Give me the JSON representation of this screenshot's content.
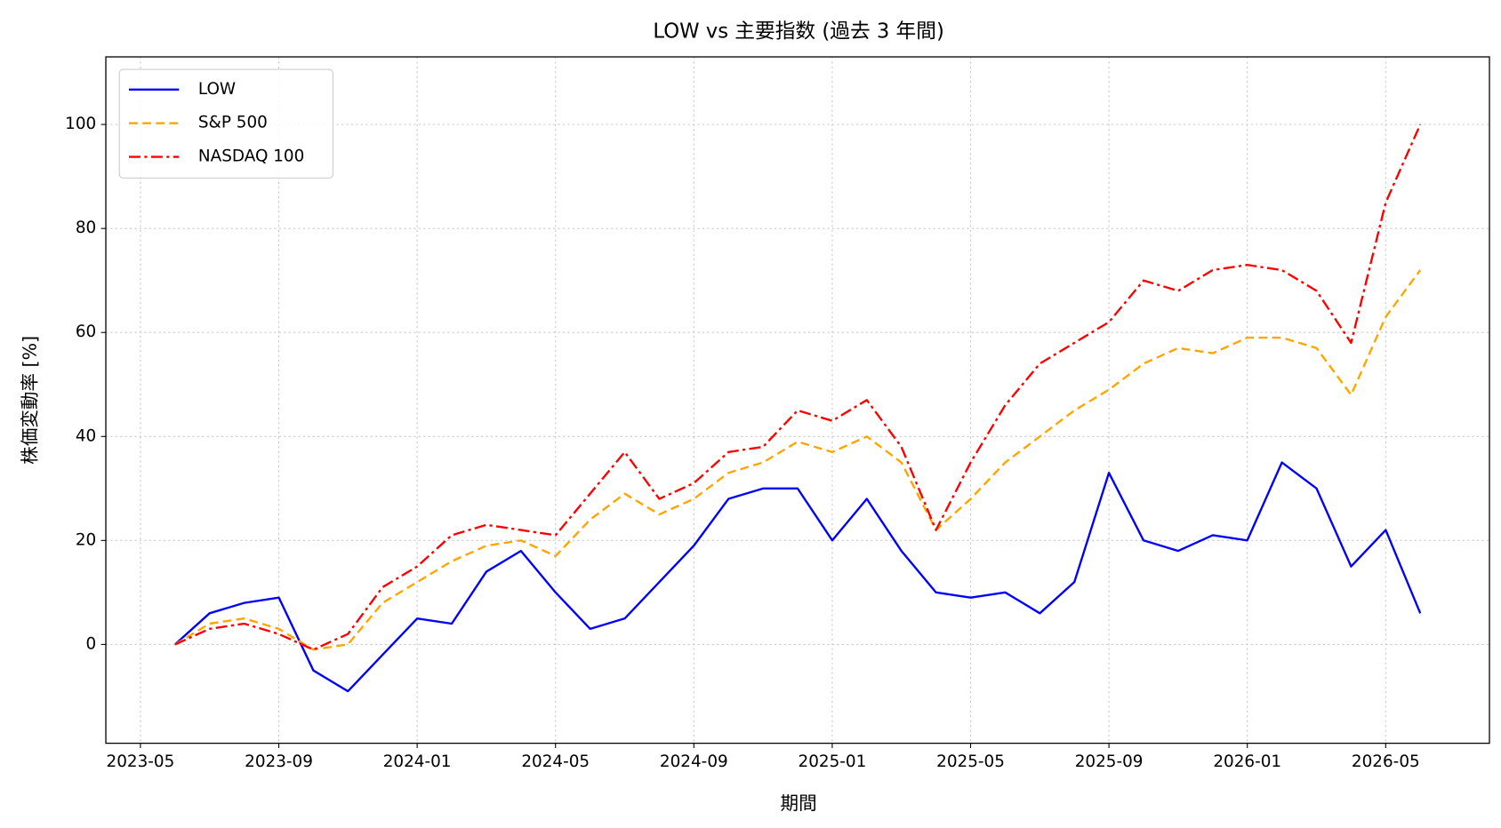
{
  "chart_data": {
    "type": "line",
    "title": "LOW vs 主要指数 (過去 3 年間)",
    "x_label": "期間",
    "y_label": "株価変動率 [%]",
    "x": [
      "2023-06",
      "2023-07",
      "2023-08",
      "2023-09",
      "2023-10",
      "2023-11",
      "2023-12",
      "2024-01",
      "2024-02",
      "2024-03",
      "2024-04",
      "2024-05",
      "2024-06",
      "2024-07",
      "2024-08",
      "2024-09",
      "2024-10",
      "2024-11",
      "2024-12",
      "2025-01",
      "2025-02",
      "2025-03",
      "2025-04",
      "2025-05",
      "2025-06",
      "2025-07",
      "2025-08",
      "2025-09",
      "2025-10",
      "2025-11",
      "2025-12",
      "2026-01",
      "2026-02",
      "2026-03",
      "2026-04",
      "2026-05",
      "2026-06"
    ],
    "series": [
      {
        "name": "LOW",
        "color": "#0000ff",
        "linestyle": "solid",
        "values": [
          0,
          6,
          8,
          9,
          -5,
          -9,
          -2,
          5,
          4,
          14,
          18,
          10,
          3,
          5,
          12,
          19,
          28,
          30,
          30,
          20,
          28,
          18,
          10,
          9,
          10,
          6,
          12,
          33,
          20,
          18,
          21,
          20,
          35,
          30,
          15,
          22,
          6
        ]
      },
      {
        "name": "S&P 500",
        "color": "#ffa500",
        "linestyle": "dashed",
        "values": [
          0,
          4,
          5,
          3,
          -1,
          0,
          8,
          12,
          16,
          19,
          20,
          17,
          24,
          29,
          25,
          28,
          33,
          35,
          39,
          37,
          40,
          35,
          22,
          28,
          35,
          40,
          45,
          49,
          54,
          57,
          56,
          59,
          59,
          57,
          48,
          63,
          72
        ]
      },
      {
        "name": "NASDAQ 100",
        "color": "#ff0000",
        "linestyle": "dashdot",
        "values": [
          0,
          3,
          4,
          2,
          -1,
          2,
          11,
          15,
          21,
          23,
          22,
          21,
          29,
          37,
          28,
          31,
          37,
          38,
          45,
          43,
          47,
          38,
          22,
          35,
          46,
          54,
          58,
          62,
          70,
          68,
          72,
          73,
          72,
          68,
          58,
          85,
          100
        ]
      }
    ],
    "xlim": [
      "2023-04",
      "2026-08"
    ],
    "xticks": [
      "2023-05",
      "2023-09",
      "2024-01",
      "2024-05",
      "2024-09",
      "2025-01",
      "2025-05",
      "2025-09",
      "2026-01",
      "2026-05"
    ],
    "ylim": [
      -19,
      113
    ],
    "yticks": [
      0,
      20,
      40,
      60,
      80,
      100
    ],
    "grid": true,
    "legend": "upper-left"
  }
}
